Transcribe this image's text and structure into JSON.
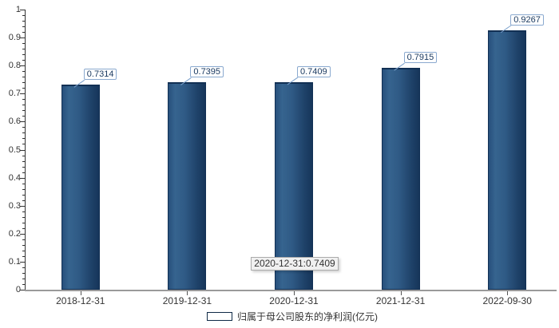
{
  "colors": {
    "bar_edge_dark": "#16355a",
    "bar_left": "#27507c",
    "bar_light": "#36648f",
    "bar_mid": "#2f5a85",
    "bar_dark": "#1e4168",
    "bar_border": "#123054",
    "value_label_border": "#8aa9cf",
    "value_label_text": "#17375e",
    "axis_line": "#9a9a9a",
    "yaxis_line": "#333333",
    "text": "#333333",
    "tooltip_bg": "#f0f0f0",
    "tooltip_border": "#ababab",
    "leader_line": "#7ba0cc"
  },
  "chart_data": {
    "type": "bar",
    "title": "",
    "xlabel": "",
    "ylabel": "",
    "categories": [
      "2018-12-31",
      "2019-12-31",
      "2020-12-31",
      "2021-12-31",
      "2022-09-30"
    ],
    "values": [
      0.7314,
      0.7395,
      0.7409,
      0.7915,
      0.9267
    ],
    "value_labels": [
      "0.7314",
      "0.7395",
      "0.7409",
      "0.7915",
      "0.9267"
    ],
    "series_name": "归属于母公司股东的净利润(亿元)",
    "ylim": [
      0,
      1
    ],
    "y_major_ticks": [
      "0",
      "0.1",
      "0.2",
      "0.3",
      "0.4",
      "0.5",
      "0.6",
      "0.7",
      "0.8",
      "0.9",
      "1"
    ],
    "minor_tick_step": 0.02,
    "grid": false,
    "legend_position": "bottom",
    "tooltip": {
      "text": "2020-12-31:0.7409",
      "target_category": "2020-12-31"
    }
  },
  "legend": {
    "label": "归属于母公司股东的净利润(亿元)"
  }
}
